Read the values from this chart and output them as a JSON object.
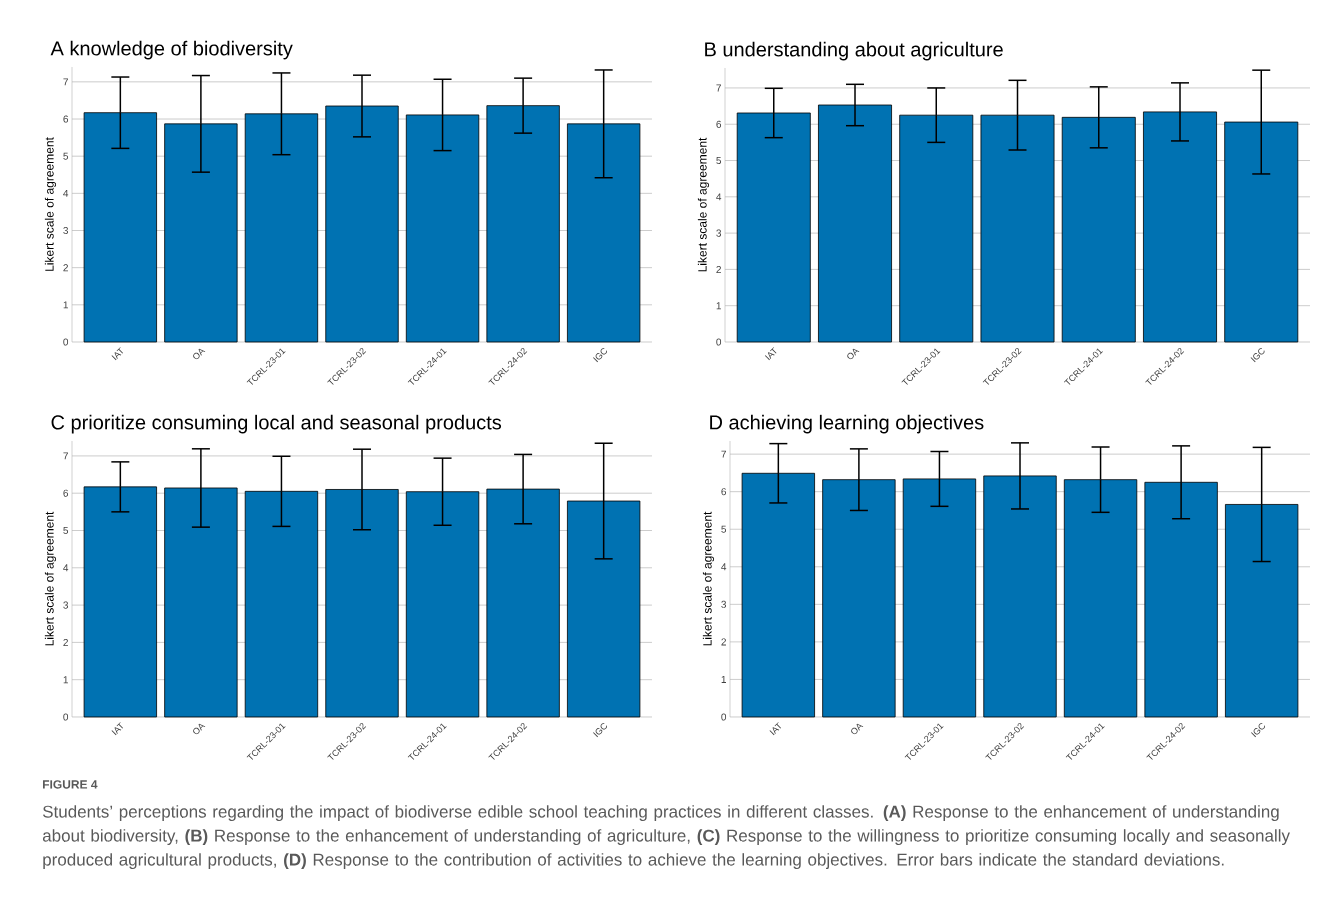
{
  "chart_data": [
    {
      "type": "bar",
      "title": "A knowledge of biodiversity",
      "ylabel": "Likert scale of agreement",
      "categories": [
        "IAT",
        "OA",
        "TCRL-23-01",
        "TCRL-23-02",
        "TCRL-24-01",
        "TCRL-24-02",
        "IGC"
      ],
      "values": [
        6.17,
        5.87,
        6.14,
        6.35,
        6.11,
        6.36,
        5.87
      ],
      "errors": [
        0.96,
        1.3,
        1.1,
        0.83,
        0.96,
        0.74,
        1.45
      ],
      "color": "#0072b2",
      "ylim": [
        0,
        7.4
      ],
      "yticks": [
        0,
        1,
        2,
        3,
        4,
        5,
        6,
        7
      ],
      "grid": "y"
    },
    {
      "type": "bar",
      "title": "B understanding about agriculture",
      "ylabel": "Likert scale of agreement",
      "categories": [
        "IAT",
        "OA",
        "TCRL-23-01",
        "TCRL-23-02",
        "TCRL-24-01",
        "TCRL-24-02",
        "IGC"
      ],
      "values": [
        6.31,
        6.53,
        6.25,
        6.25,
        6.19,
        6.34,
        6.06
      ],
      "errors": [
        0.68,
        0.57,
        0.75,
        0.96,
        0.84,
        0.8,
        1.43
      ],
      "color": "#0072b2",
      "ylim": [
        0,
        7.55
      ],
      "yticks": [
        0,
        1,
        2,
        3,
        4,
        5,
        6,
        7
      ],
      "grid": "y"
    },
    {
      "type": "bar",
      "title": "C prioritize consuming local and seasonal products",
      "ylabel": "Likert scale of agreement",
      "categories": [
        "IAT",
        "OA",
        "TCRL-23-01",
        "TCRL-23-02",
        "TCRL-24-01",
        "TCRL-24-02",
        "IGC"
      ],
      "values": [
        6.17,
        6.14,
        6.05,
        6.1,
        6.04,
        6.11,
        5.79
      ],
      "errors": [
        0.67,
        1.05,
        0.94,
        1.08,
        0.9,
        0.93,
        1.55
      ],
      "color": "#0072b2",
      "ylim": [
        0,
        7.4
      ],
      "yticks": [
        0,
        1,
        2,
        3,
        4,
        5,
        6,
        7
      ],
      "grid": "y"
    },
    {
      "type": "bar",
      "title": "D achieving learning objectives",
      "ylabel": "Likert scale of agreement",
      "categories": [
        "IAT",
        "OA",
        "TCRL-23-01",
        "TCRL-23-02",
        "TCRL-24-01",
        "TCRL-24-02",
        "IGC"
      ],
      "values": [
        6.49,
        6.32,
        6.34,
        6.42,
        6.32,
        6.25,
        5.66
      ],
      "errors": [
        0.79,
        0.82,
        0.73,
        0.88,
        0.87,
        0.97,
        1.52
      ],
      "color": "#0072b2",
      "ylim": [
        0,
        7.35
      ],
      "yticks": [
        0,
        1,
        2,
        3,
        4,
        5,
        6,
        7
      ],
      "grid": "y",
      "annotations": [
        "FIGURE 4",
        "Students’ perceptions regarding the impact of biodiverse edible school teaching practices in different classes. **(A)** Response to the enhancement of understanding about biodiversity, **(B)** Response to the enhancement of understanding of agriculture, **(C)** Response to the willingness to prioritize consuming locally and seasonally produced agricultural products, **(D)** Response to the contribution of activities to achieve the learning objectives. Error bars indicate the standard deviations."
      ]
    }
  ]
}
